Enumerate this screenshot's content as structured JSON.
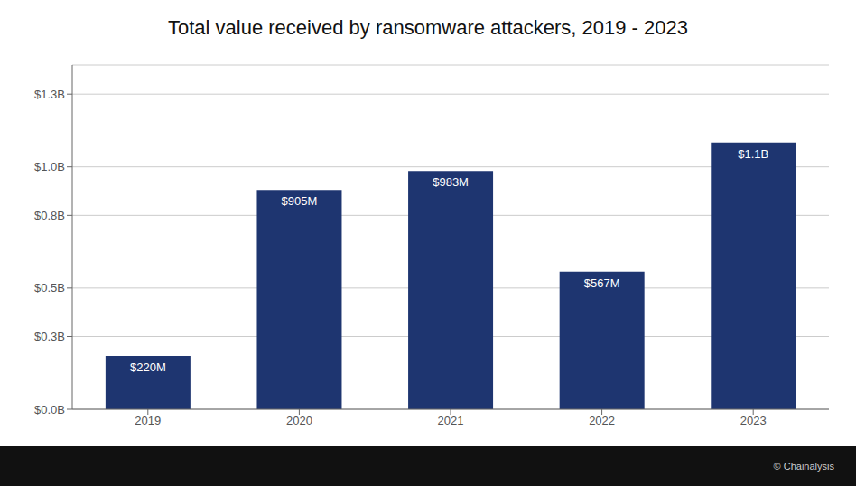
{
  "chart_data": {
    "type": "bar",
    "title": "Total value received by ransomware attackers, 2019 - 2023",
    "categories": [
      "2019",
      "2020",
      "2021",
      "2022",
      "2023"
    ],
    "values": [
      0.22,
      0.905,
      0.983,
      0.567,
      1.1
    ],
    "value_labels": [
      "$220M",
      "$905M",
      "$983M",
      "$567M",
      "$1.1B"
    ],
    "data_labels": true,
    "color": "#1e3570",
    "ylim": [
      0,
      1.42
    ],
    "yticks": [
      {
        "value": 0.0,
        "label": "$0.0B"
      },
      {
        "value": 0.3,
        "label": "$0.3B"
      },
      {
        "value": 0.5,
        "label": "$0.5B"
      },
      {
        "value": 0.8,
        "label": "$0.8B"
      },
      {
        "value": 1.0,
        "label": "$1.0B"
      },
      {
        "value": 1.3,
        "label": "$1.3B"
      }
    ],
    "grid": true,
    "annotations": [
      "© Chainalysis"
    ]
  }
}
